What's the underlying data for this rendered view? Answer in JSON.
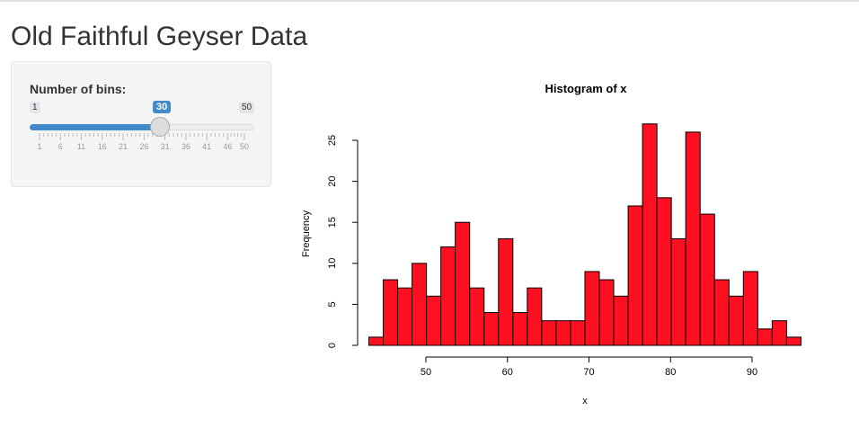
{
  "title": "Old Faithful Geyser Data",
  "slider": {
    "label": "Number of bins:",
    "min": 1,
    "max": 50,
    "value": 30,
    "min_label": "1",
    "max_label": "50",
    "value_label": "30",
    "accent": "#428bca",
    "tick_labels": [
      "1",
      "6",
      "11",
      "16",
      "21",
      "26",
      "31",
      "36",
      "41",
      "46",
      "50"
    ]
  },
  "chart_data": {
    "type": "bar",
    "title": "Histogram of x",
    "xlabel": "x",
    "ylabel": "Frequency",
    "bar_color": "#ff0f1f",
    "break_start": 43,
    "break_end": 96,
    "values": [
      1,
      8,
      7,
      10,
      6,
      12,
      15,
      7,
      4,
      13,
      4,
      7,
      3,
      3,
      3,
      9,
      8,
      6,
      17,
      27,
      18,
      13,
      26,
      16,
      8,
      6,
      9,
      2,
      3,
      1
    ],
    "xticks": [
      50,
      60,
      70,
      80,
      90
    ],
    "yticks": [
      0,
      5,
      10,
      15,
      20,
      25
    ],
    "grid": false
  }
}
